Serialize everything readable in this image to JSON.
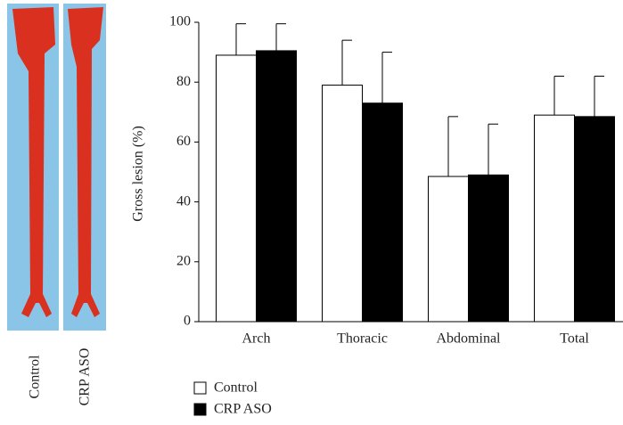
{
  "photo_labels": [
    "Control",
    "CRP ASO"
  ],
  "chart_data": {
    "type": "bar",
    "y_label": "Gross lesion (%)",
    "categories": [
      "Arch",
      "Thoracic",
      "Abdominal",
      "Total"
    ],
    "series": [
      {
        "name": "Control",
        "color": "#ffffff",
        "values": [
          89,
          79,
          48.5,
          69
        ],
        "errors": [
          10.5,
          15,
          20,
          13
        ]
      },
      {
        "name": "CRP ASO",
        "color": "#000000",
        "values": [
          90.5,
          73,
          49,
          68.5
        ],
        "errors": [
          9,
          17,
          17,
          13.5
        ]
      }
    ],
    "ylim": [
      0,
      100
    ],
    "yticks": [
      0,
      20,
      40,
      60,
      80,
      100
    ]
  }
}
